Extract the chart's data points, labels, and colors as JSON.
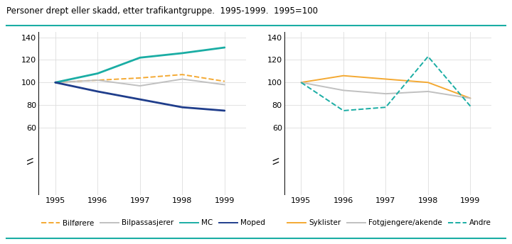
{
  "title": "Personer drept eller skadd, etter trafikantgruppe.  1995-1999.  1995=100",
  "years": [
    1995,
    1996,
    1997,
    1998,
    1999
  ],
  "left_series": {
    "Bilførere": [
      100,
      102,
      104,
      107,
      101
    ],
    "Bilpassasjerer": [
      100,
      102,
      97,
      103,
      98
    ],
    "MC": [
      100,
      108,
      122,
      126,
      131
    ],
    "Moped": [
      100,
      92,
      85,
      78,
      75
    ]
  },
  "right_series": {
    "Syklister": [
      100,
      106,
      103,
      100,
      86
    ],
    "Fotgjengere/akende": [
      100,
      93,
      90,
      92,
      86
    ],
    "Andre": [
      100,
      75,
      78,
      123,
      79
    ]
  },
  "left_styles": {
    "Bilførere": {
      "color": "#F4A932",
      "linestyle": "--",
      "linewidth": 1.4
    },
    "Bilpassasjerer": {
      "color": "#C0C0C0",
      "linestyle": "-",
      "linewidth": 1.4
    },
    "MC": {
      "color": "#1AADA4",
      "linestyle": "-",
      "linewidth": 2.0
    },
    "Moped": {
      "color": "#1F3D8B",
      "linestyle": "-",
      "linewidth": 2.0
    }
  },
  "right_styles": {
    "Syklister": {
      "color": "#F4A932",
      "linestyle": "-",
      "linewidth": 1.4
    },
    "Fotgjengere/akende": {
      "color": "#C0C0C0",
      "linestyle": "-",
      "linewidth": 1.4
    },
    "Andre": {
      "color": "#1AADA4",
      "linestyle": "--",
      "linewidth": 1.4
    }
  },
  "ylim": [
    0,
    145
  ],
  "yticks": [
    0,
    60,
    80,
    100,
    120,
    140
  ],
  "background": "#FFFFFF",
  "grid_color": "#DDDDDD",
  "teal_line_color": "#1AADA4",
  "left_legend": [
    {
      "label": "Bilførere",
      "color": "#F4A932",
      "ls": "--"
    },
    {
      "label": "Bilpassasjerer",
      "color": "#C0C0C0",
      "ls": "-"
    },
    {
      "label": "MC",
      "color": "#1AADA4",
      "ls": "-"
    },
    {
      "label": "Moped",
      "color": "#1F3D8B",
      "ls": "-"
    }
  ],
  "right_legend": [
    {
      "label": "Syklister",
      "color": "#F4A932",
      "ls": "-"
    },
    {
      "label": "Fotgjengere/akende",
      "color": "#C0C0C0",
      "ls": "-"
    },
    {
      "label": "Andre",
      "color": "#1AADA4",
      "ls": "--"
    }
  ]
}
